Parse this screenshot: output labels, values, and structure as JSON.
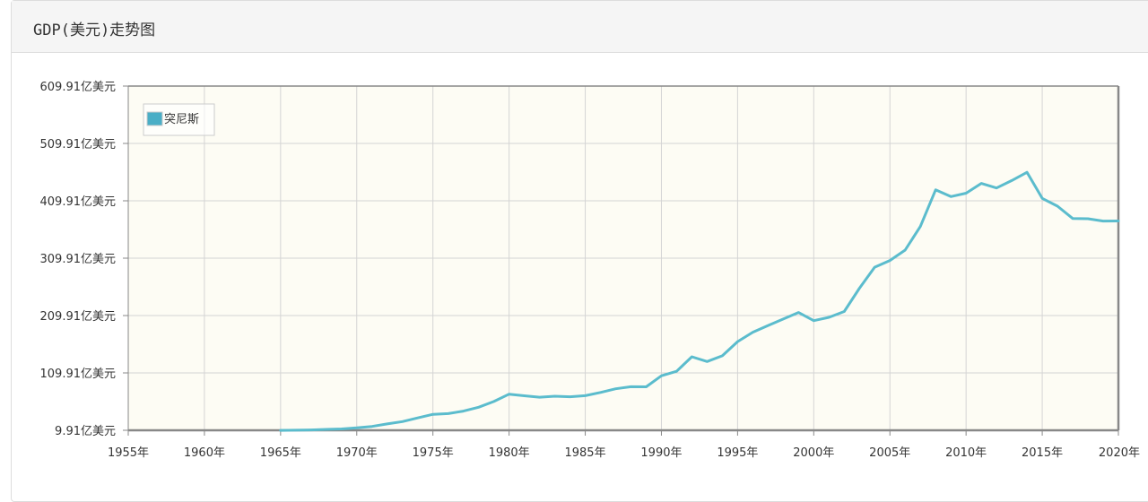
{
  "panel": {
    "title": "GDP(美元)走势图"
  },
  "colors": {
    "series": "#5bbccd",
    "plot_background": "#fdfcf4",
    "grid": "#d4d4d4",
    "axis": "#888888",
    "legend_swatch": "#4aaec6"
  },
  "chart_data": {
    "type": "line",
    "title": "GDP(美元)走势图",
    "xlabel": "",
    "ylabel": "",
    "xlim": [
      1955,
      2020
    ],
    "ylim": [
      9.91,
      609.91
    ],
    "grid": true,
    "legend_position": "top-left",
    "x_ticks": [
      "1955年",
      "1960年",
      "1965年",
      "1970年",
      "1975年",
      "1980年",
      "1985年",
      "1990年",
      "1995年",
      "2000年",
      "2005年",
      "2010年",
      "2015年",
      "2020年"
    ],
    "y_ticks": [
      "9.91亿美元",
      "109.91亿美元",
      "209.91亿美元",
      "309.91亿美元",
      "409.91亿美元",
      "509.91亿美元",
      "609.91亿美元"
    ],
    "series": [
      {
        "name": "突尼斯",
        "x": [
          1965,
          1966,
          1967,
          1968,
          1969,
          1970,
          1971,
          1972,
          1973,
          1974,
          1975,
          1976,
          1977,
          1978,
          1979,
          1980,
          1981,
          1982,
          1983,
          1984,
          1985,
          1986,
          1987,
          1988,
          1989,
          1990,
          1991,
          1992,
          1993,
          1994,
          1995,
          1996,
          1997,
          1998,
          1999,
          2000,
          2001,
          2002,
          2003,
          2004,
          2005,
          2006,
          2007,
          2008,
          2009,
          2010,
          2011,
          2012,
          2013,
          2014,
          2015,
          2016,
          2017,
          2018,
          2019,
          2020
        ],
        "values": [
          9.7,
          10.1,
          10.6,
          11.4,
          12.3,
          14.2,
          16.6,
          21.0,
          25.1,
          31.4,
          37.8,
          38.9,
          43.3,
          50.0,
          60.0,
          72.9,
          70.0,
          67.6,
          69.3,
          68.3,
          70.3,
          75.9,
          82.2,
          85.8,
          85.7,
          104.9,
          112.8,
          138.0,
          129.7,
          139.7,
          164.5,
          180.9,
          192.5,
          203.8,
          215.2,
          201.0,
          206.8,
          217.0,
          257.5,
          294.1,
          305.8,
          324.0,
          365.2,
          429.0,
          417.2,
          423.2,
          440.3,
          432.3,
          445.3,
          459.6,
          414.2,
          400.5,
          379.1,
          378.7,
          374.6,
          374.7
        ]
      }
    ]
  }
}
